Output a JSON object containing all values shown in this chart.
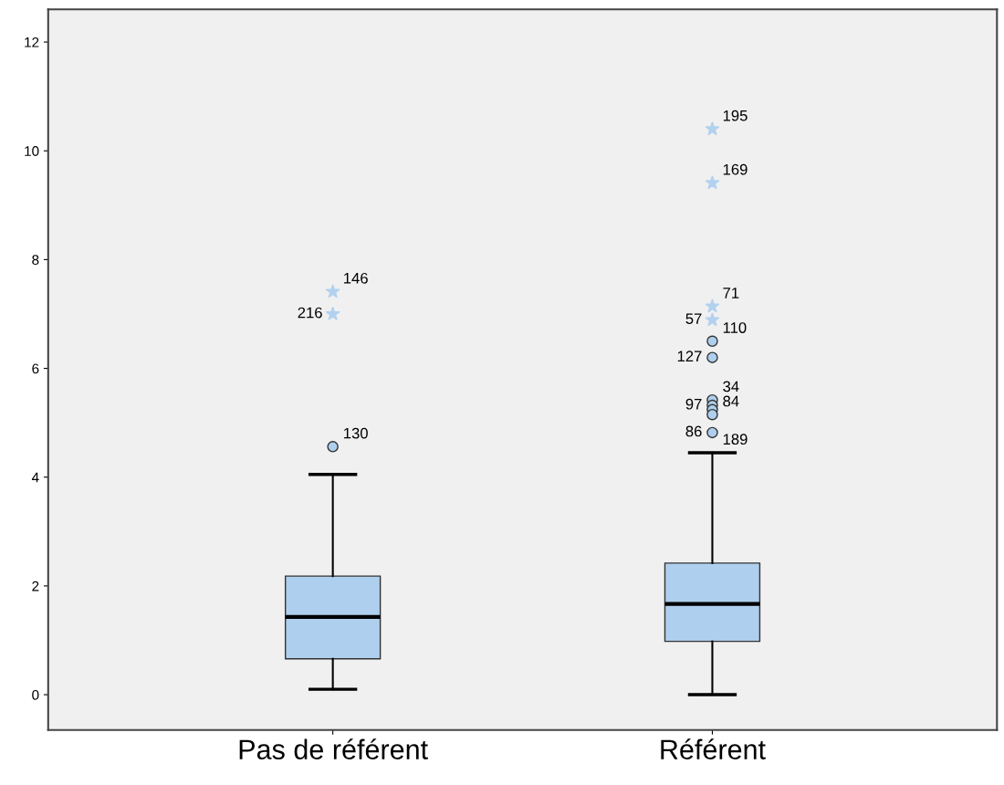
{
  "chart_data": {
    "type": "box",
    "categories": [
      "Pas de référent",
      "Référent"
    ],
    "boxes": [
      {
        "low": 0.1,
        "q1": 0.66,
        "median": 1.43,
        "q3": 2.18,
        "high": 4.05
      },
      {
        "low": 0.0,
        "q1": 0.98,
        "median": 1.67,
        "q3": 2.42,
        "high": 4.45
      }
    ],
    "color": "#aecfed",
    "series": [
      {
        "type": "scatter",
        "marker": "circle",
        "color": "#aecfed",
        "x": [
          "Pas de référent",
          "Référent",
          "Référent",
          "Référent",
          "Référent",
          "Référent",
          "Référent",
          "Référent"
        ],
        "values": [
          4.56,
          6.5,
          6.2,
          5.42,
          5.32,
          5.24,
          5.15,
          4.82
        ]
      },
      {
        "type": "scatter",
        "marker": "star",
        "color": "#b3d1ef",
        "x": [
          "Pas de référent",
          "Pas de référent",
          "Référent",
          "Référent",
          "Référent",
          "Référent"
        ],
        "values": [
          7.41,
          7.0,
          10.4,
          9.41,
          7.14,
          6.89
        ]
      }
    ],
    "annotations": [
      {
        "text": "146",
        "x": "Pas de référent",
        "y": 7.41
      },
      {
        "text": "216",
        "x": "Pas de référent",
        "y": 7.0
      },
      {
        "text": "130",
        "x": "Pas de référent",
        "y": 4.56
      },
      {
        "text": "195",
        "x": "Référent",
        "y": 10.4
      },
      {
        "text": "169",
        "x": "Référent",
        "y": 9.41
      },
      {
        "text": "71",
        "x": "Référent",
        "y": 7.14
      },
      {
        "text": "57",
        "x": "Référent",
        "y": 6.89
      },
      {
        "text": "110",
        "x": "Référent",
        "y": 6.5
      },
      {
        "text": "127",
        "x": "Référent",
        "y": 6.2
      },
      {
        "text": "34",
        "x": "Référent",
        "y": 5.42
      },
      {
        "text": "97",
        "x": "Référent",
        "y": 5.32
      },
      {
        "text": "84",
        "x": "Référent",
        "y": 5.15
      },
      {
        "text": "86",
        "x": "Référent",
        "y": 4.82
      },
      {
        "text": "189",
        "x": "Référent",
        "y": 4.45
      }
    ],
    "ylim": [
      -0.65,
      12.6
    ],
    "yticks": [
      0,
      2,
      4,
      6,
      8,
      10,
      12
    ],
    "grid": false
  }
}
